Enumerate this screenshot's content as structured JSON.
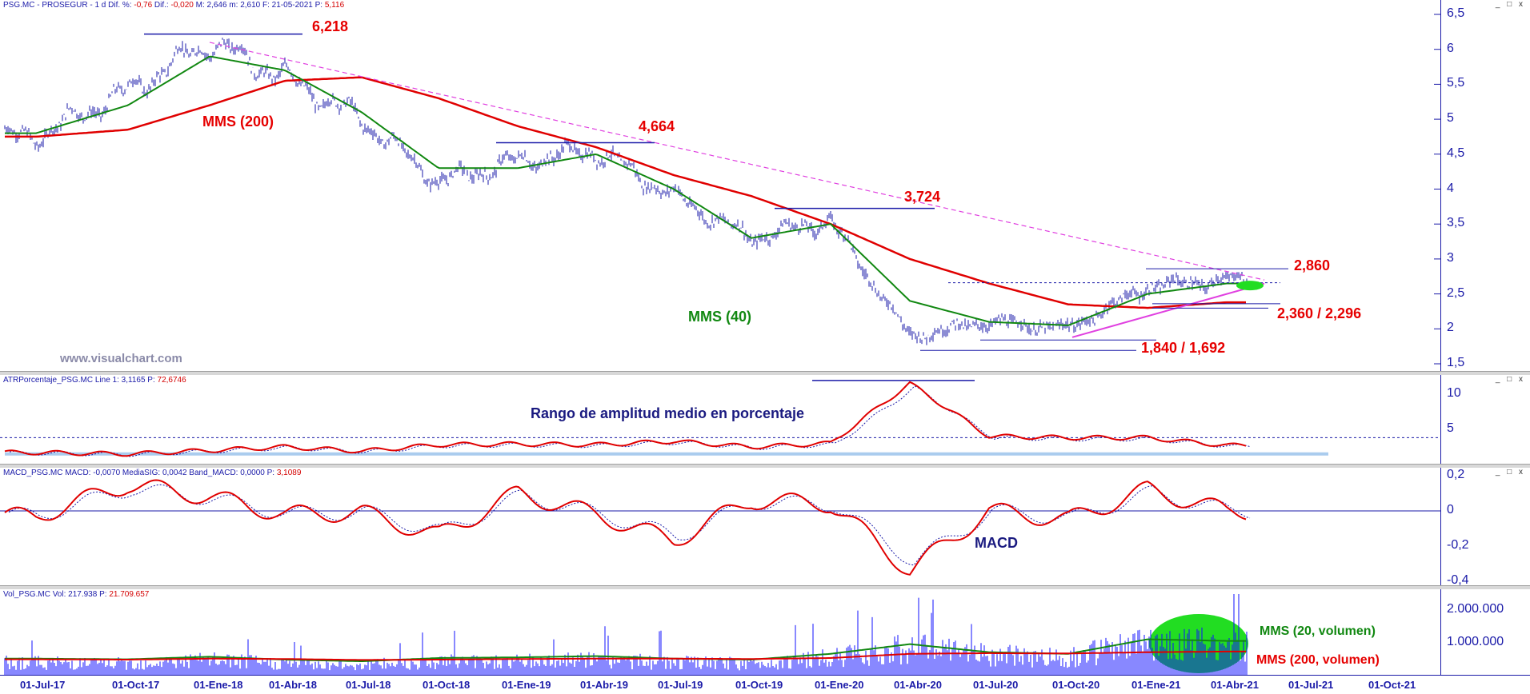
{
  "panels": {
    "price": {
      "title_parts": [
        "PSG.MC - PROSEGUR - 1 d Dif. %: ",
        "-0,76",
        " Dif.: ",
        "-0,020",
        " M: 2,646 m: 2,610 F: 21-05-2021 P: ",
        "5,116"
      ],
      "ticks": [
        "6,5",
        "6",
        "5,5",
        "5",
        "4,5",
        "4",
        "3,5",
        "3",
        "2,5",
        "2",
        "1,5"
      ],
      "watermark": "www.visualchart.com"
    },
    "atr": {
      "title_parts": [
        "ATRPorcentaje_PSG.MC Line 1: 3,1165 P: ",
        "72,6746"
      ],
      "ticks": [
        "10",
        "5"
      ],
      "label": "Rango de amplitud medio en porcentaje"
    },
    "macd": {
      "title_parts": [
        "MACD_PSG.MC MACD: -0,0070 MediaSIG: 0,0042 Band_MACD: 0,0000 P: ",
        "3,1089"
      ],
      "ticks": [
        "0,2",
        "0",
        "-0,2",
        "-0,4"
      ],
      "label": "MACD"
    },
    "volume": {
      "title_parts": [
        "Vol_PSG.MC Vol: 217.938 P: ",
        "21.709.657"
      ],
      "ticks": [
        "2.000.000",
        "1.000.000"
      ],
      "label_mms20": "MMS (20, volumen)",
      "label_mms200": "MMS (200, volumen)"
    }
  },
  "window_controls": "_ □ x",
  "colors": {
    "price": "#1a1aa8",
    "mms200": "#e00000",
    "mms40": "#118811",
    "annotation_red": "#e60000",
    "trend": "#e040e0",
    "volume": "#1010ff",
    "highlight": "#22dd22"
  },
  "annotations": {
    "mms200": "MMS (200)",
    "mms40": "MMS (40)",
    "lvl_6218": "6,218",
    "lvl_4664": "4,664",
    "lvl_3724": "3,724",
    "lvl_2860": "2,860",
    "lvl_2360": "2,360 / 2,296",
    "lvl_1840": "1,840 / 1,692"
  },
  "x_labels": [
    "01-Jul-17",
    "01-Oct-17",
    "01-Ene-18",
    "01-Abr-18",
    "01-Jul-18",
    "01-Oct-18",
    "01-Ene-19",
    "01-Abr-19",
    "01-Jul-19",
    "01-Oct-19",
    "01-Ene-20",
    "01-Abr-20",
    "01-Jul-20",
    "01-Oct-20",
    "01-Ene-21",
    "01-Abr-21",
    "01-Jul-21",
    "01-Oct-21"
  ],
  "chart_data": {
    "type": "line",
    "x": [
      "01-Jul-17",
      "01-Oct-17",
      "01-Ene-18",
      "01-Abr-18",
      "01-Jul-18",
      "01-Oct-18",
      "01-Ene-19",
      "01-Abr-19",
      "01-Jul-19",
      "01-Oct-19",
      "01-Ene-20",
      "01-Abr-20",
      "01-Jul-20",
      "01-Oct-20",
      "01-Ene-21",
      "01-Abr-21"
    ],
    "series": [
      {
        "values": [
          4.75,
          5.4,
          6.1,
          5.6,
          5.0,
          4.1,
          4.4,
          4.55,
          3.9,
          3.3,
          3.55,
          1.9,
          2.1,
          2.0,
          2.6,
          2.7
        ]
      },
      {
        "name": "MMS (40)",
        "values": [
          4.8,
          5.2,
          5.9,
          5.7,
          5.1,
          4.3,
          4.3,
          4.5,
          4.0,
          3.3,
          3.5,
          2.4,
          2.1,
          2.05,
          2.5,
          2.65
        ]
      },
      {
        "name": "MMS (200)",
        "values": [
          4.75,
          4.85,
          5.2,
          5.55,
          5.6,
          5.3,
          4.9,
          4.6,
          4.2,
          3.9,
          3.5,
          3.0,
          2.65,
          2.35,
          2.3,
          2.38
        ]
      }
    ],
    "ylim": [
      1.5,
      6.5
    ],
    "atr": {
      "x": [
        "01-Jul-17",
        "01-Oct-17",
        "01-Ene-18",
        "01-Abr-18",
        "01-Jul-18",
        "01-Oct-18",
        "01-Ene-19",
        "01-Abr-19",
        "01-Jul-19",
        "01-Oct-19",
        "01-Ene-20",
        "01-Abr-20",
        "01-Jul-20",
        "01-Oct-20",
        "01-Ene-21",
        "01-Abr-21"
      ],
      "values": [
        1.7,
        1.5,
        2.0,
        2.5,
        1.9,
        2.8,
        2.9,
        2.8,
        3.3,
        2.5,
        3.0,
        11.5,
        4.0,
        3.8,
        3.8,
        2.7
      ],
      "ylim": [
        0,
        12
      ]
    },
    "macd": {
      "x": [
        "01-Jul-17",
        "01-Oct-17",
        "01-Ene-18",
        "01-Abr-18",
        "01-Jul-18",
        "01-Oct-18",
        "01-Ene-19",
        "01-Abr-19",
        "01-Jul-19",
        "01-Oct-19",
        "01-Ene-20",
        "01-Abr-20",
        "01-Jul-20",
        "01-Oct-20",
        "01-Ene-21",
        "01-Abr-21"
      ],
      "values": [
        -0.03,
        0.15,
        0.08,
        -0.02,
        -0.01,
        -0.14,
        0.1,
        -0.02,
        -0.17,
        0.06,
        0.04,
        -0.34,
        0.0,
        -0.05,
        0.12,
        0.0
      ],
      "ylim": [
        -0.4,
        0.2
      ]
    },
    "volume": {
      "x": [
        "01-Jul-17",
        "01-Oct-17",
        "01-Ene-18",
        "01-Abr-18",
        "01-Jul-18",
        "01-Oct-18",
        "01-Ene-19",
        "01-Abr-19",
        "01-Jul-19",
        "01-Oct-19",
        "01-Ene-20",
        "01-Abr-20",
        "01-Jul-20",
        "01-Oct-20",
        "01-Ene-21",
        "01-Abr-21"
      ],
      "values": [
        500000,
        450000,
        600000,
        450000,
        400000,
        550000,
        550000,
        600000,
        500000,
        450000,
        700000,
        1100000,
        800000,
        700000,
        1300000,
        1200000
      ],
      "mms20": [
        500000,
        480000,
        560000,
        470000,
        420000,
        520000,
        540000,
        580000,
        500000,
        470000,
        650000,
        950000,
        700000,
        650000,
        1100000,
        1050000
      ],
      "mms200": [
        480000,
        470000,
        500000,
        490000,
        460000,
        470000,
        490000,
        500000,
        500000,
        490000,
        520000,
        650000,
        670000,
        660000,
        700000,
        720000
      ],
      "ylim": [
        0,
        2500000
      ]
    }
  }
}
